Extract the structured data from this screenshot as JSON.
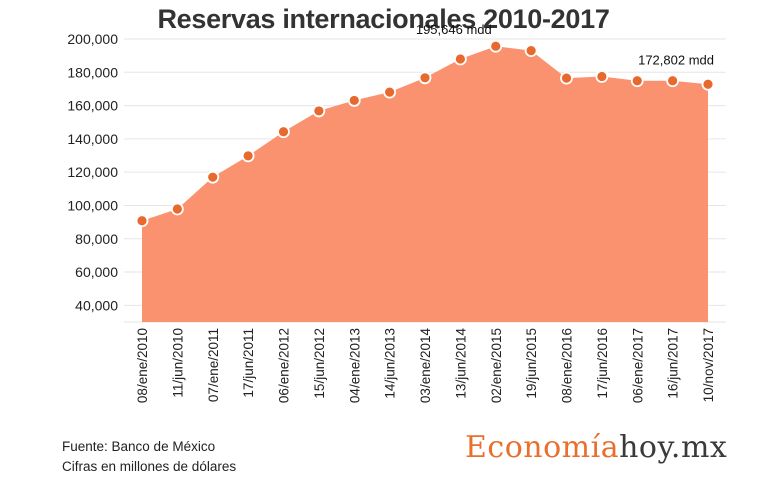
{
  "chart_data": {
    "type": "area",
    "title": "Reservas internacionales 2010-2017",
    "ylim": [
      30000,
      200000
    ],
    "yticks": [
      40000,
      60000,
      80000,
      100000,
      120000,
      140000,
      160000,
      180000,
      200000
    ],
    "ytick_labels": [
      "40,000",
      "60,000",
      "80,000",
      "100,000",
      "120,000",
      "140,000",
      "160,000",
      "180,000",
      "200,000"
    ],
    "categories": [
      "08/ene/2010",
      "11/jun/2010",
      "07/ene/2011",
      "17/jun/2011",
      "06/ene/2012",
      "15/jun/2012",
      "04/ene/2013",
      "14/jun/2013",
      "03/ene/2014",
      "13/jun/2014",
      "02/ene/2015",
      "19/jun/2015",
      "08/ene/2016",
      "17/jun/2016",
      "06/ene/2017",
      "16/jun/2017",
      "10/nov/2017"
    ],
    "tick_labels": [
      "08/ene/2010",
      "11/jun/2010",
      "07/ene/2011",
      "17/jun/2011",
      "06/ene/2012",
      "15/jun/2012",
      "04/ene/2013",
      "14/jun/2013",
      "03/ene/2014",
      "13/jun/2014",
      "02/ene/2015",
      "19/jun/2015",
      "08/ene/2016",
      "17/jun/2016",
      "06/ene/2017",
      "16/jun/2017",
      "10/nov/2017"
    ],
    "values": [
      90800,
      97900,
      117000,
      129800,
      144300,
      156800,
      163100,
      168100,
      176700,
      188000,
      195646,
      193000,
      176500,
      177500,
      174900,
      174900,
      172802
    ],
    "annotations": [
      {
        "index": 10,
        "text": "195,646 mdd"
      },
      {
        "index": 16,
        "text": "172,802 mdd"
      }
    ],
    "colors": {
      "fill": "#fa9270",
      "marker": "#e8692d",
      "marker_edge": "#ffffff",
      "grid": "#e6e6e6"
    },
    "grid": true
  },
  "footer": {
    "source": "Fuente: Banco de México",
    "units": "Cifras en millones de dólares"
  },
  "brand": {
    "part1": "Economía",
    "part2": "hoy.mx"
  }
}
